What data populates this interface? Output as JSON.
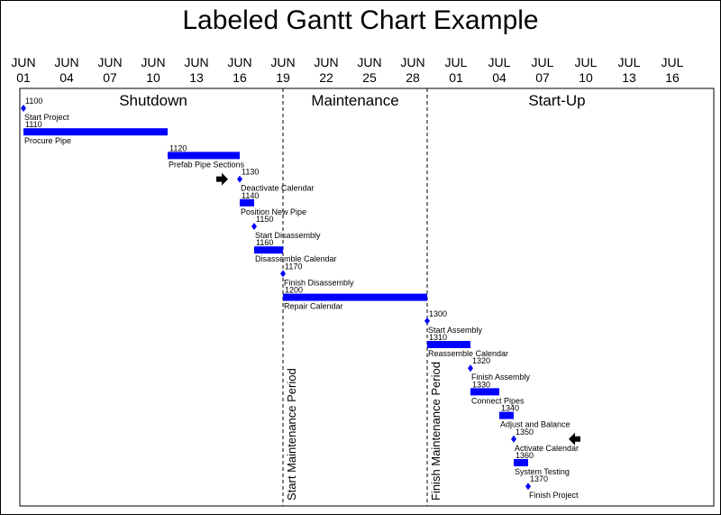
{
  "chart_data": {
    "type": "gantt",
    "title": "Labeled Gantt Chart Example",
    "x_ticks": [
      {
        "m": "JUN",
        "d": "01"
      },
      {
        "m": "JUN",
        "d": "04"
      },
      {
        "m": "JUN",
        "d": "07"
      },
      {
        "m": "JUN",
        "d": "10"
      },
      {
        "m": "JUN",
        "d": "13"
      },
      {
        "m": "JUN",
        "d": "16"
      },
      {
        "m": "JUN",
        "d": "19"
      },
      {
        "m": "JUN",
        "d": "22"
      },
      {
        "m": "JUN",
        "d": "25"
      },
      {
        "m": "JUN",
        "d": "28"
      },
      {
        "m": "JUL",
        "d": "01"
      },
      {
        "m": "JUL",
        "d": "04"
      },
      {
        "m": "JUL",
        "d": "07"
      },
      {
        "m": "JUL",
        "d": "10"
      },
      {
        "m": "JUL",
        "d": "13"
      },
      {
        "m": "JUL",
        "d": "16"
      }
    ],
    "phases": [
      {
        "name": "Shutdown",
        "start": "JUN01",
        "end": "JUN19"
      },
      {
        "name": "Maintenance",
        "start": "JUN19",
        "end": "JUN29"
      },
      {
        "name": "Start-Up",
        "start": "JUN29",
        "end": "JUL17"
      }
    ],
    "reference_lines": [
      {
        "label": "Start Maintenance Period",
        "date": "JUN19"
      },
      {
        "label": "Finish Maintenance Period",
        "date": "JUN29"
      }
    ],
    "tasks": [
      {
        "id": "1100",
        "name": "Start Project",
        "start": "JUN01",
        "end": "JUN01",
        "milestone": true
      },
      {
        "id": "1110",
        "name": "Procure Pipe",
        "start": "JUN01",
        "end": "JUN11",
        "milestone": false
      },
      {
        "id": "1120",
        "name": "Prefab Pipe Sections",
        "start": "JUN11",
        "end": "JUN16",
        "milestone": false
      },
      {
        "id": "1130",
        "name": "Deactivate Calendar",
        "start": "JUN16",
        "end": "JUN16",
        "milestone": true
      },
      {
        "id": "1140",
        "name": "Position New Pipe",
        "start": "JUN16",
        "end": "JUN17",
        "milestone": false
      },
      {
        "id": "1150",
        "name": "Start Disassembly",
        "start": "JUN17",
        "end": "JUN17",
        "milestone": true
      },
      {
        "id": "1160",
        "name": "Disassemble Calendar",
        "start": "JUN17",
        "end": "JUN19",
        "milestone": false
      },
      {
        "id": "1170",
        "name": "Finish Disassembly",
        "start": "JUN19",
        "end": "JUN19",
        "milestone": true
      },
      {
        "id": "1200",
        "name": "Repair Calendar",
        "start": "JUN19",
        "end": "JUN29",
        "milestone": false
      },
      {
        "id": "1300",
        "name": "Start Assembly",
        "start": "JUN29",
        "end": "JUN29",
        "milestone": true
      },
      {
        "id": "1310",
        "name": "Reassemble Calendar",
        "start": "JUN29",
        "end": "JUL02",
        "milestone": false
      },
      {
        "id": "1320",
        "name": "Finish Assembly",
        "start": "JUL02",
        "end": "JUL02",
        "milestone": true
      },
      {
        "id": "1330",
        "name": "Connect Pipes",
        "start": "JUL02",
        "end": "JUL04",
        "milestone": false
      },
      {
        "id": "1340",
        "name": "Adjust and Balance",
        "start": "JUL04",
        "end": "JUL05",
        "milestone": false
      },
      {
        "id": "1350",
        "name": "Activate Calendar",
        "start": "JUL05",
        "end": "JUL05",
        "milestone": true
      },
      {
        "id": "1360",
        "name": "System Testing",
        "start": "JUL05",
        "end": "JUL06",
        "milestone": false
      },
      {
        "id": "1370",
        "name": "Finish Project",
        "start": "JUL06",
        "end": "JUL06",
        "milestone": true
      }
    ],
    "pointers": [
      {
        "task": "1130",
        "direction": "right"
      },
      {
        "task": "1350",
        "direction": "left"
      }
    ],
    "colors": {
      "bar": "#0000ff",
      "milestone": "#0000ff",
      "pointer": "#000000",
      "line": "#000000"
    }
  }
}
